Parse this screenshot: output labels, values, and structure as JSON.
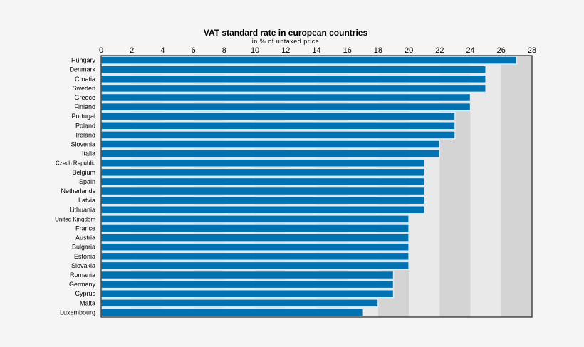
{
  "chart_data": {
    "type": "bar",
    "orientation": "horizontal",
    "title": "VAT standard rate in european countries",
    "subtitle": "in % of untaxed price",
    "xlim": [
      0,
      28
    ],
    "xticks": [
      0,
      2,
      4,
      6,
      8,
      10,
      12,
      14,
      16,
      18,
      20,
      22,
      24,
      26,
      28
    ],
    "grid": "alternating vertical bands every 2",
    "categories": [
      "Hungary",
      "Denmark",
      "Croatia",
      "Sweden",
      "Greece",
      "Finland",
      "Portugal",
      "Poland",
      "Ireland",
      "Slovenia",
      "Italia",
      "Czech Republic",
      "Belgium",
      "Spain",
      "Netherlands",
      "Latvia",
      "Lithuania",
      "United Kingdom",
      "France",
      "Austria",
      "Bulgaria",
      "Estonia",
      "Slovakia",
      "Romania",
      "Germany",
      "Cyprus",
      "Malta",
      "Luxembourg"
    ],
    "values": [
      27,
      25,
      25,
      25,
      24,
      24,
      23,
      23,
      23,
      22,
      22,
      21,
      21,
      21,
      21,
      21,
      21,
      20,
      20,
      20,
      20,
      20,
      20,
      19,
      19,
      19,
      18,
      17
    ],
    "colors": {
      "bar": "#0072b2",
      "bar_outline": "#d6ecf8",
      "band_light": "#e9e9e9",
      "band_dark": "#d4d4d4",
      "background": "#f5f5f5"
    }
  }
}
